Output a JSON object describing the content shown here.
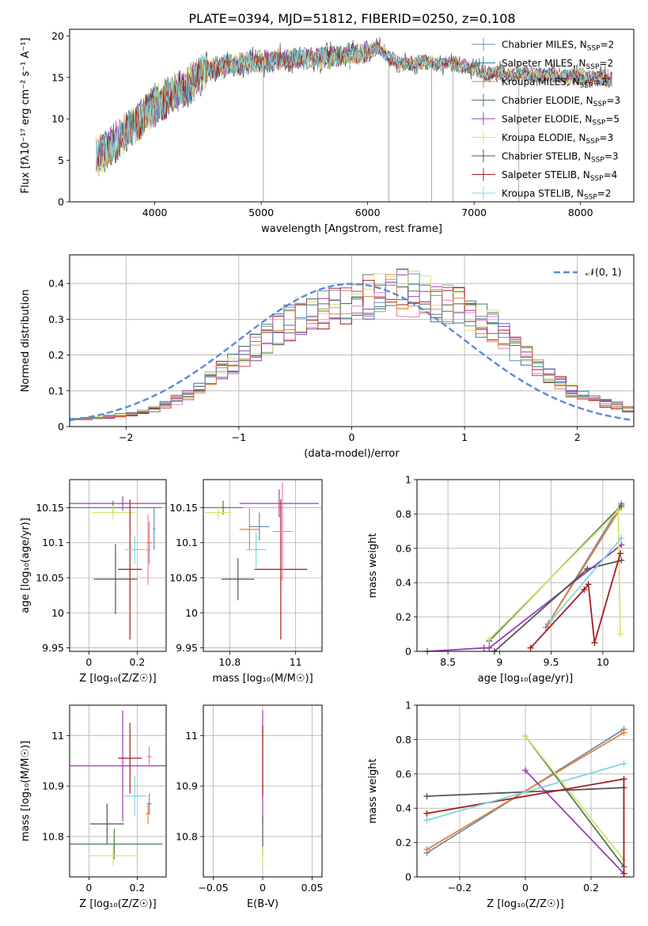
{
  "figure": {
    "title": "PLATE=0394, MJD=51812, FIBERID=0250, z=0.108"
  },
  "legend": [
    {
      "name": "Chabrier MILES, N",
      "nssp": "2",
      "color": "#6a8fb0"
    },
    {
      "name": "Salpeter MILES, N",
      "nssp": "2",
      "color": "#2a7aa8"
    },
    {
      "name": "Kroupa MILES, N",
      "nssp": "2",
      "color": "#e8823a"
    },
    {
      "name": "Chabrier ELODIE, N",
      "nssp": "3",
      "color": "#4f7a5a"
    },
    {
      "name": "Salpeter ELODIE, N",
      "nssp": "5",
      "color": "#9b3fb5"
    },
    {
      "name": "Kroupa ELODIE, N",
      "nssp": "3",
      "color": "#d7e36a"
    },
    {
      "name": "Chabrier STELIB, N",
      "nssp": "3",
      "color": "#555555"
    },
    {
      "name": "Salpeter STELIB, N",
      "nssp": "4",
      "color": "#a51d1d"
    },
    {
      "name": "Kroupa STELIB, N",
      "nssp": "2",
      "color": "#7fd8e0"
    }
  ],
  "chart_data": [
    {
      "id": "spectrum",
      "type": "line",
      "xlabel": "wavelength [Angstrom, rest frame]",
      "ylabel": "Flux [fλ10⁻¹⁷ erg cm⁻² s⁻¹ A⁻¹]",
      "xlim": [
        3200,
        8500
      ],
      "ylim": [
        0,
        20.8
      ],
      "xticks": [
        4000,
        5000,
        6000,
        7000,
        8000
      ],
      "yticks": [
        0,
        5,
        10,
        15,
        20
      ],
      "continuum": [
        [
          3450,
          5.2
        ],
        [
          3700,
          8
        ],
        [
          3900,
          10.5
        ],
        [
          4100,
          12.5
        ],
        [
          4300,
          14
        ],
        [
          4500,
          16
        ],
        [
          4700,
          16.5
        ],
        [
          4900,
          16.8
        ],
        [
          5100,
          17
        ],
        [
          5400,
          17.3
        ],
        [
          5700,
          17.5
        ],
        [
          5900,
          17.8
        ],
        [
          6100,
          18.5
        ],
        [
          6300,
          16.5
        ],
        [
          6500,
          16.8
        ],
        [
          6700,
          16.7
        ],
        [
          6900,
          16.4
        ],
        [
          7100,
          15.5
        ],
        [
          7400,
          15.3
        ],
        [
          7700,
          15.3
        ],
        [
          8000,
          15
        ],
        [
          8300,
          14.8
        ]
      ],
      "vlines": [
        5020,
        6200,
        6600,
        6800,
        7420
      ]
    },
    {
      "id": "residuals",
      "type": "step",
      "xlabel": "(data-model)/error",
      "ylabel": "Normed distribution",
      "xlim": [
        -2.5,
        2.5
      ],
      "ylim": [
        0,
        0.48
      ],
      "xticks": [
        -2,
        -1,
        0,
        1,
        2
      ],
      "yticks": [
        0,
        0.1,
        0.2,
        0.3,
        0.4
      ],
      "gaussian_label": "𝒩(0, 1)",
      "bin_width": 0.1,
      "bins": [
        -2.5,
        -2.4,
        -2.3,
        -2.2,
        -2.1,
        -2.0,
        -1.9,
        -1.8,
        -1.7,
        -1.6,
        -1.5,
        -1.4,
        -1.3,
        -1.2,
        -1.1,
        -1.0,
        -0.9,
        -0.8,
        -0.7,
        -0.6,
        -0.5,
        -0.4,
        -0.3,
        -0.2,
        -0.1,
        0.0,
        0.1,
        0.2,
        0.3,
        0.4,
        0.5,
        0.6,
        0.7,
        0.8,
        0.9,
        1.0,
        1.1,
        1.2,
        1.3,
        1.4,
        1.5,
        1.6,
        1.7,
        1.8,
        1.9,
        2.0,
        2.1,
        2.2,
        2.3,
        2.4
      ],
      "hist_base": [
        0.02,
        0.022,
        0.025,
        0.028,
        0.032,
        0.036,
        0.042,
        0.05,
        0.06,
        0.075,
        0.09,
        0.11,
        0.13,
        0.16,
        0.18,
        0.2,
        0.22,
        0.245,
        0.27,
        0.29,
        0.31,
        0.32,
        0.33,
        0.335,
        0.34,
        0.35,
        0.36,
        0.365,
        0.37,
        0.375,
        0.37,
        0.36,
        0.35,
        0.34,
        0.33,
        0.32,
        0.3,
        0.28,
        0.25,
        0.22,
        0.19,
        0.16,
        0.14,
        0.12,
        0.1,
        0.085,
        0.075,
        0.065,
        0.06,
        0.05
      ]
    },
    {
      "id": "age-vs-z",
      "type": "errorbar",
      "xlabel": "Z [log₁₀(Z/Z☉)]",
      "ylabel": "age  [log₁₀(age/yr)]",
      "xlim": [
        -0.08,
        0.32
      ],
      "ylim": [
        9.945,
        10.19
      ],
      "xticks": [
        0.0,
        0.2
      ],
      "yticks": [
        9.95,
        10.0,
        10.05,
        10.1,
        10.15
      ],
      "points": [
        {
          "x": 0.27,
          "y": 10.12,
          "xe": 0.005,
          "ye": 0.03,
          "c": "#6a8fb0"
        },
        {
          "x": 0.25,
          "y": 10.1,
          "xe": 0.01,
          "ye": 0.03,
          "c": "#e8823a"
        },
        {
          "x": 0.1,
          "y": 10.15,
          "xe": 0.2,
          "ye": 0.01,
          "c": "#4f7a5a"
        },
        {
          "x": 0.14,
          "y": 10.156,
          "xe": 0.23,
          "ye": 0.01,
          "c": "#9b3fb5"
        },
        {
          "x": 0.1,
          "y": 10.143,
          "xe": 0.09,
          "ye": 0.01,
          "c": "#d7e36a"
        },
        {
          "x": 0.11,
          "y": 10.048,
          "xe": 0.09,
          "ye": 0.05,
          "c": "#555555"
        },
        {
          "x": 0.17,
          "y": 10.062,
          "xe": 0.05,
          "ye": 0.1,
          "c": "#a51d1d"
        },
        {
          "x": 0.19,
          "y": 10.09,
          "xe": 0.04,
          "ye": 0.02,
          "c": "#7fd8e0"
        },
        {
          "x": 0.245,
          "y": 10.09,
          "xe": 0.01,
          "ye": 0.05,
          "c": "#f07ab0"
        }
      ]
    },
    {
      "id": "age-vs-mass",
      "type": "errorbar",
      "xlabel": "mass [log₁₀(M/M☉)]",
      "ylabel": "",
      "xlim": [
        10.72,
        11.08
      ],
      "ylim": [
        9.945,
        10.19
      ],
      "xticks": [
        10.8,
        11.0
      ],
      "yticks": [
        9.95,
        10.0,
        10.05,
        10.1,
        10.15
      ],
      "points": [
        {
          "x": 10.89,
          "y": 10.123,
          "xe": 0.03,
          "ye": 0.02,
          "c": "#6a8fb0"
        },
        {
          "x": 10.86,
          "y": 10.119,
          "xe": 0.03,
          "ye": 0.03,
          "c": "#e8823a"
        },
        {
          "x": 10.78,
          "y": 10.15,
          "xe": 0.06,
          "ye": 0.01,
          "c": "#4f7a5a"
        },
        {
          "x": 10.95,
          "y": 10.156,
          "xe": 0.12,
          "ye": 0.02,
          "c": "#9b3fb5"
        },
        {
          "x": 10.765,
          "y": 10.143,
          "xe": 0.04,
          "ye": 0.01,
          "c": "#d7e36a"
        },
        {
          "x": 10.825,
          "y": 10.048,
          "xe": 0.05,
          "ye": 0.03,
          "c": "#555555"
        },
        {
          "x": 10.955,
          "y": 10.062,
          "xe": 0.08,
          "ye": 0.1,
          "c": "#a51d1d"
        },
        {
          "x": 10.88,
          "y": 10.09,
          "xe": 0.03,
          "ye": 0.025,
          "c": "#7fd8e0"
        },
        {
          "x": 10.96,
          "y": 10.116,
          "xe": 0.03,
          "ye": 0.07,
          "c": "#f07ab0"
        }
      ]
    },
    {
      "id": "weight-vs-age",
      "type": "line",
      "xlabel": "age  [log₁₀(age/yr)]",
      "ylabel": "mass weight",
      "xlim": [
        8.2,
        10.3
      ],
      "ylim": [
        0,
        1.0
      ],
      "xticks": [
        8.5,
        9.0,
        9.5,
        10.0
      ],
      "yticks": [
        0,
        0.2,
        0.4,
        0.6,
        0.8,
        1.0
      ],
      "series": [
        {
          "c": "#6a8fb0",
          "pts": [
            [
              9.45,
              0.14
            ],
            [
              10.18,
              0.86
            ]
          ]
        },
        {
          "c": "#e8823a",
          "pts": [
            [
              9.47,
              0.16
            ],
            [
              10.18,
              0.84
            ]
          ]
        },
        {
          "c": "#4f7a5a",
          "pts": [
            [
              8.9,
              0.06
            ],
            [
              10.18,
              0.85
            ]
          ]
        },
        {
          "c": "#9b3fb5",
          "pts": [
            [
              8.3,
              0.0
            ],
            [
              8.85,
              0.02
            ],
            [
              8.9,
              0.02
            ],
            [
              10.18,
              0.62
            ]
          ]
        },
        {
          "c": "#d7e36a",
          "pts": [
            [
              8.9,
              0.07
            ],
            [
              10.15,
              0.82
            ],
            [
              10.17,
              0.1
            ]
          ]
        },
        {
          "c": "#555555",
          "pts": [
            [
              8.95,
              0.0
            ],
            [
              9.85,
              0.48
            ],
            [
              10.18,
              0.53
            ]
          ]
        },
        {
          "c": "#a51d1d",
          "pts": [
            [
              9.3,
              0.02
            ],
            [
              9.82,
              0.36
            ],
            [
              9.86,
              0.39
            ],
            [
              9.92,
              0.05
            ],
            [
              10.17,
              0.57
            ]
          ]
        },
        {
          "c": "#7fd8e0",
          "pts": [
            [
              9.5,
              0.18
            ],
            [
              10.18,
              0.66
            ]
          ]
        }
      ]
    },
    {
      "id": "mass-vs-z",
      "type": "errorbar",
      "xlabel": "Z [log₁₀(Z/Z☉)]",
      "ylabel": "mass [log₁₀(M/M☉)]",
      "xlim": [
        -0.08,
        0.32
      ],
      "ylim": [
        10.72,
        11.06
      ],
      "xticks": [
        0.0,
        0.2
      ],
      "yticks": [
        10.8,
        10.9,
        11.0
      ],
      "points": [
        {
          "x": 0.25,
          "y": 10.865,
          "xe": 0.01,
          "ye": 0.02,
          "c": "#6a8fb0"
        },
        {
          "x": 0.245,
          "y": 10.845,
          "xe": 0.01,
          "ye": 0.02,
          "c": "#e8823a"
        },
        {
          "x": 0.105,
          "y": 10.785,
          "xe": 0.2,
          "ye": 0.03,
          "c": "#4f7a5a"
        },
        {
          "x": 0.14,
          "y": 10.94,
          "xe": 0.23,
          "ye": 0.11,
          "c": "#9b3fb5"
        },
        {
          "x": 0.1,
          "y": 10.762,
          "xe": 0.1,
          "ye": 0.02,
          "c": "#d7e36a"
        },
        {
          "x": 0.075,
          "y": 10.825,
          "xe": 0.07,
          "ye": 0.04,
          "c": "#555555"
        },
        {
          "x": 0.17,
          "y": 10.955,
          "xe": 0.05,
          "ye": 0.07,
          "c": "#a51d1d"
        },
        {
          "x": 0.19,
          "y": 10.88,
          "xe": 0.05,
          "ye": 0.04,
          "c": "#7fd8e0"
        },
        {
          "x": 0.25,
          "y": 10.958,
          "xe": 0.01,
          "ye": 0.02,
          "c": "#f07ab0"
        }
      ]
    },
    {
      "id": "mass-vs-ebv",
      "type": "errorbar",
      "xlabel": "E(B-V)",
      "ylabel": "",
      "xlim": [
        -0.06,
        0.06
      ],
      "ylim": [
        10.72,
        11.06
      ],
      "xticks": [
        -0.05,
        0.0,
        0.05
      ],
      "yticks": [
        10.8,
        10.9,
        11.0
      ],
      "points": [
        {
          "x": 0.0,
          "y": 10.94,
          "xe": 0.0,
          "ye": 0.11,
          "c": "#9b3fb5"
        },
        {
          "x": 0.0,
          "y": 10.95,
          "xe": 0.0,
          "ye": 0.07,
          "c": "#a51d1d"
        },
        {
          "x": 0.0,
          "y": 10.8,
          "xe": 0.0,
          "ye": 0.04,
          "c": "#555555"
        },
        {
          "x": 0.0,
          "y": 10.76,
          "xe": 0.0,
          "ye": 0.02,
          "c": "#d7e36a"
        }
      ]
    },
    {
      "id": "weight-vs-z",
      "type": "line",
      "xlabel": "Z [log₁₀(Z/Z☉)]",
      "ylabel": "mass weight",
      "xlim": [
        -0.33,
        0.33
      ],
      "ylim": [
        0,
        1.0
      ],
      "xticks": [
        -0.2,
        0.0,
        0.2
      ],
      "yticks": [
        0,
        0.2,
        0.4,
        0.6,
        0.8,
        1.0
      ],
      "series": [
        {
          "c": "#6a8fb0",
          "pts": [
            [
              -0.3,
              0.14
            ],
            [
              0.3,
              0.86
            ]
          ]
        },
        {
          "c": "#e8823a",
          "pts": [
            [
              -0.3,
              0.16
            ],
            [
              0.3,
              0.84
            ]
          ]
        },
        {
          "c": "#4f7a5a",
          "pts": [
            [
              0.0,
              0.82
            ],
            [
              0.3,
              0.06
            ]
          ]
        },
        {
          "c": "#9b3fb5",
          "pts": [
            [
              0.0,
              0.62
            ],
            [
              0.3,
              0.02
            ]
          ]
        },
        {
          "c": "#d7e36a",
          "pts": [
            [
              0.0,
              0.82
            ],
            [
              0.3,
              0.1
            ]
          ]
        },
        {
          "c": "#555555",
          "pts": [
            [
              -0.3,
              0.47
            ],
            [
              0.3,
              0.52
            ]
          ]
        },
        {
          "c": "#a51d1d",
          "pts": [
            [
              -0.3,
              0.37
            ],
            [
              0.3,
              0.57
            ],
            [
              0.3,
              0.02
            ]
          ]
        },
        {
          "c": "#7fd8e0",
          "pts": [
            [
              -0.3,
              0.33
            ],
            [
              0.3,
              0.66
            ]
          ]
        }
      ]
    }
  ]
}
